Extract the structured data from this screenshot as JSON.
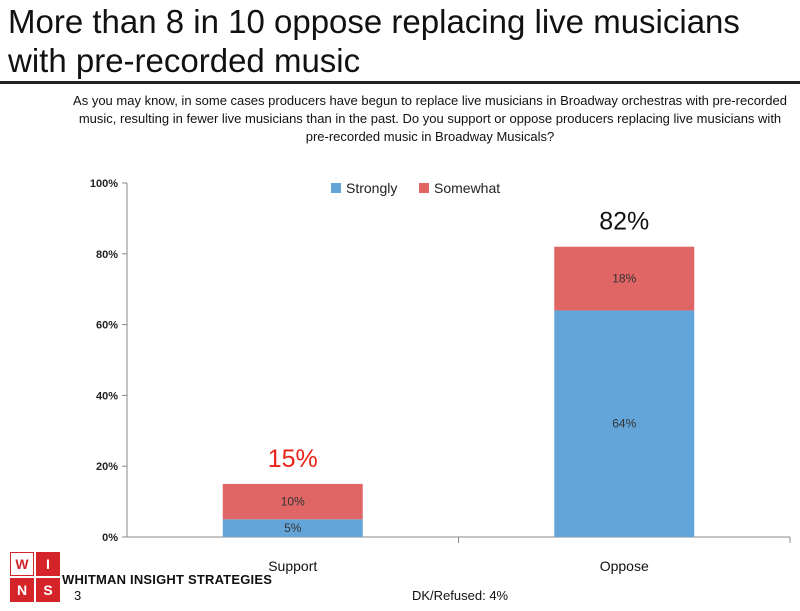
{
  "slide": {
    "title": "More than 8 in 10 oppose replacing live musicians with pre-recorded music",
    "question": "As you may know, in some cases producers have begun to replace live musicians in Broadway orchestras with pre-recorded music, resulting in fewer live musicians than in the past.  Do you support or oppose producers replacing live musicians with pre-recorded music in Broadway Musicals?",
    "brand_name": "WHITMAN INSIGHT STRATEGIES",
    "page_number": "3",
    "footnote": "DK/Refused:  4%"
  },
  "logo": {
    "letters": [
      "W",
      "I",
      "N",
      "S"
    ],
    "colors": [
      "#ffffff",
      "#d4242a",
      "#d4242a",
      "#d4242a"
    ],
    "text_colors": [
      "#d4242a",
      "#ffffff",
      "#ffffff",
      "#ffffff"
    ]
  },
  "chart_data": {
    "type": "bar",
    "stacked": true,
    "categories": [
      "Support",
      "Oppose"
    ],
    "series": [
      {
        "name": "Strongly",
        "values": [
          5,
          64
        ],
        "labels": [
          "5%",
          "64%"
        ],
        "color": "#64a5d9"
      },
      {
        "name": "Somewhat",
        "values": [
          10,
          18
        ],
        "labels": [
          "10%",
          "18%"
        ],
        "color": "#e06666"
      }
    ],
    "totals": [
      15,
      82
    ],
    "total_labels": [
      "15%",
      "82%"
    ],
    "total_label_colors": [
      "#e8231a",
      "#111111"
    ],
    "yticks": [
      "0%",
      "20%",
      "40%",
      "60%",
      "80%",
      "100%"
    ],
    "ylim": [
      0,
      100
    ],
    "legend": "top-center"
  }
}
